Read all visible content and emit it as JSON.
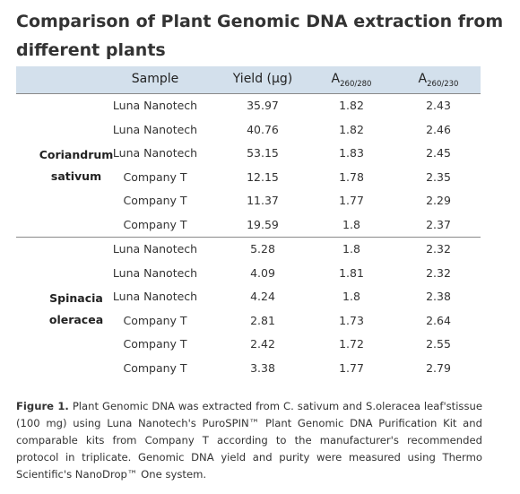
{
  "title": "Comparison of Plant Genomic DNA extraction from different plants",
  "header": {
    "sample": "Sample",
    "yield": "Yield (µg)",
    "a1_main": "A",
    "a1_sub": "260/280",
    "a2_main": "A",
    "a2_sub": "260/230"
  },
  "groups": [
    {
      "label_line1": "Coriandrum",
      "label_line2": "sativum",
      "rows": [
        [
          "Luna Nanotech",
          "35.97",
          "1.82",
          "2.43"
        ],
        [
          "Luna Nanotech",
          "40.76",
          "1.82",
          "2.46"
        ],
        [
          "Luna Nanotech",
          "53.15",
          "1.83",
          "2.45"
        ],
        [
          "Company T",
          "12.15",
          "1.78",
          "2.35"
        ],
        [
          "Company T",
          "11.37",
          "1.77",
          "2.29"
        ],
        [
          "Company T",
          "19.59",
          "1.8",
          "2.37"
        ]
      ]
    },
    {
      "label_line1": "Spinacia",
      "label_line2": "oleracea",
      "rows": [
        [
          "Luna Nanotech",
          "5.28",
          "1.8",
          "2.32"
        ],
        [
          "Luna Nanotech",
          "4.09",
          "1.81",
          "2.32"
        ],
        [
          "Luna Nanotech",
          "4.24",
          "1.8",
          "2.38"
        ],
        [
          "Company T",
          "2.81",
          "1.73",
          "2.64"
        ],
        [
          "Company T",
          "2.42",
          "1.72",
          "2.55"
        ],
        [
          "Company T",
          "3.38",
          "1.77",
          "2.79"
        ]
      ]
    }
  ],
  "caption": {
    "label": "Figure 1.",
    "text": "Plant Genomic DNA was extracted from C. sativum and S.oleracea leaf'stissue (100 mg) using Luna Nanotech's PuroSPIN™ Plant Genomic DNA Purification Kit and comparable kits from Company T  according to the manufacturer's recommended protocol in triplicate. Genomic DNA yield and purity were measured using Thermo Scientific's NanoDrop™ One system."
  }
}
